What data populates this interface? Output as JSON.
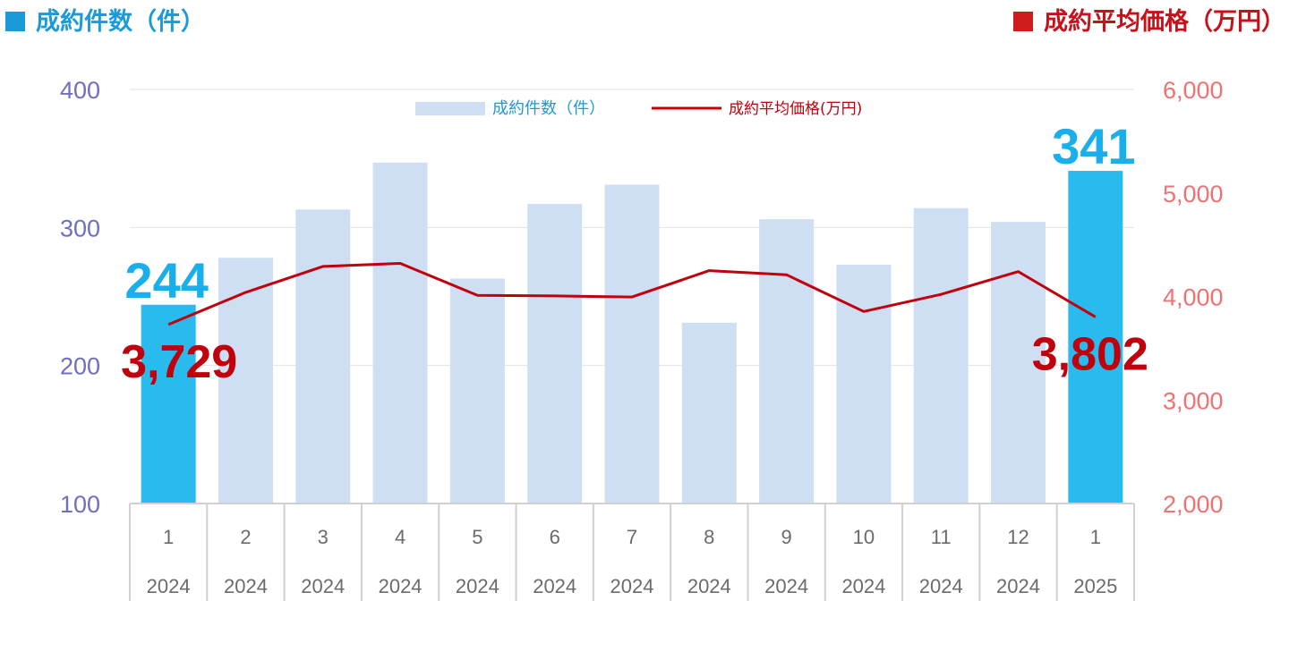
{
  "header": {
    "left_title": "成約件数（件）",
    "right_title": "成約平均価格（万円）"
  },
  "chart_data": {
    "type": "bar+line",
    "categories": [
      {
        "month": "1",
        "year": "2024"
      },
      {
        "month": "2",
        "year": "2024"
      },
      {
        "month": "3",
        "year": "2024"
      },
      {
        "month": "4",
        "year": "2024"
      },
      {
        "month": "5",
        "year": "2024"
      },
      {
        "month": "6",
        "year": "2024"
      },
      {
        "month": "7",
        "year": "2024"
      },
      {
        "month": "8",
        "year": "2024"
      },
      {
        "month": "9",
        "year": "2024"
      },
      {
        "month": "10",
        "year": "2024"
      },
      {
        "month": "11",
        "year": "2024"
      },
      {
        "month": "12",
        "year": "2024"
      },
      {
        "month": "1",
        "year": "2025"
      }
    ],
    "series": [
      {
        "name": "成約件数（件）",
        "type": "bar",
        "axis": "left",
        "values": [
          244,
          278,
          313,
          347,
          263,
          317,
          331,
          231,
          306,
          273,
          314,
          304,
          341
        ],
        "highlight": [
          0,
          12
        ],
        "color": "#cfdff3",
        "highlight_color": "#29bbee"
      },
      {
        "name": "成約平均価格(万円)",
        "type": "line",
        "axis": "right",
        "values": [
          3729,
          4040,
          4290,
          4320,
          4010,
          4005,
          3995,
          4250,
          4210,
          3855,
          4020,
          4240,
          3802
        ],
        "color": "#c0000c"
      }
    ],
    "left_axis": {
      "ylim": [
        100,
        400
      ],
      "ticks": [
        "100",
        "200",
        "300",
        "400"
      ],
      "color": "#6f6fbf"
    },
    "right_axis": {
      "ylim": [
        2000,
        6000
      ],
      "ticks": [
        "2,000",
        "3,000",
        "4,000",
        "5,000",
        "6,000"
      ],
      "color": "#f07272"
    },
    "data_labels": {
      "bar_first": "244",
      "bar_last": "341",
      "line_first": "3,729",
      "line_last": "3,802"
    },
    "legend": {
      "position": "top-center"
    },
    "grid": true
  }
}
